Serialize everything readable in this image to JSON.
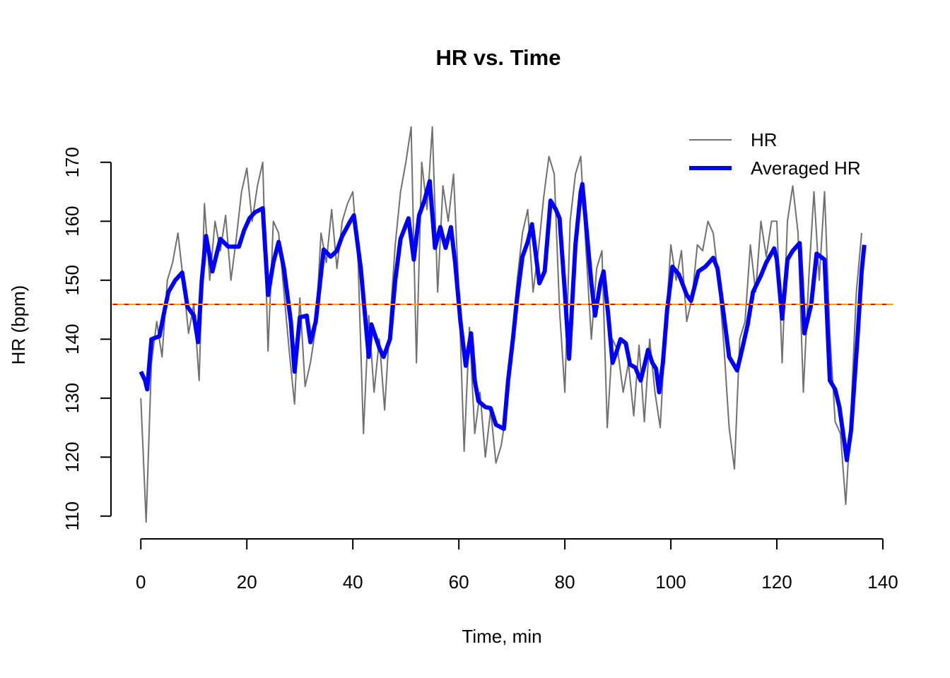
{
  "chart_data": {
    "type": "line",
    "title": "HR vs. Time",
    "x_label": "Time, min",
    "y_label": "HR (bpm)",
    "xlim": [
      -5.5,
      142
    ],
    "ylim": [
      106.5,
      178
    ],
    "xticks": [
      0,
      20,
      40,
      60,
      80,
      100,
      120,
      140
    ],
    "yticks": [
      110,
      120,
      130,
      140,
      150,
      160,
      170
    ],
    "legend": "topright",
    "hlines": [
      {
        "value": 145.9,
        "color": "#ff0000"
      },
      {
        "value": 145.9,
        "color": "#ffa500"
      }
    ],
    "series": [
      {
        "name": "HR",
        "color": "#707070",
        "width": 2,
        "x": [
          0,
          1,
          2,
          3,
          4,
          5,
          6,
          7,
          8,
          9,
          10,
          11,
          12,
          13,
          14,
          15,
          16,
          17,
          18,
          19,
          20,
          21,
          22,
          23,
          24,
          25,
          26,
          27,
          28,
          29,
          30,
          31,
          32,
          33,
          34,
          35,
          36,
          37,
          38,
          39,
          40,
          41,
          42,
          43,
          44,
          45,
          46,
          47,
          48,
          49,
          50,
          51,
          52,
          53,
          54,
          55,
          56,
          57,
          58,
          59,
          60,
          61,
          62,
          63,
          64,
          65,
          66,
          67,
          68,
          69,
          70,
          71,
          72,
          73,
          74,
          75,
          76,
          77,
          78,
          79,
          80,
          81,
          82,
          83,
          84,
          85,
          86,
          87,
          88,
          89,
          90,
          91,
          92,
          93,
          94,
          95,
          96,
          97,
          98,
          99,
          100,
          101,
          102,
          103,
          104,
          105,
          106,
          107,
          108,
          109,
          110,
          111,
          112,
          113,
          114,
          115,
          116,
          117,
          118,
          119,
          120,
          121,
          122,
          123,
          124,
          125,
          126,
          127,
          128,
          129,
          130,
          131,
          132,
          133,
          134,
          135,
          136
        ],
        "values": [
          130,
          109,
          136,
          143,
          137,
          150,
          153,
          158,
          150,
          141,
          146,
          133,
          163,
          150,
          160,
          155,
          161,
          150,
          157,
          165,
          169,
          160,
          166,
          170,
          138,
          160,
          158,
          148,
          138,
          129,
          147,
          132,
          136,
          142,
          158,
          153,
          162,
          152,
          160,
          163,
          165,
          153,
          124,
          144,
          131,
          140,
          128,
          143,
          156,
          165,
          170,
          176,
          136,
          170,
          162,
          176,
          148,
          166,
          160,
          168,
          148,
          121,
          142,
          124,
          131,
          120,
          128,
          119,
          122,
          128,
          140,
          150,
          158,
          162,
          148,
          155,
          164,
          171,
          168,
          145,
          131,
          160,
          168,
          171,
          155,
          140,
          152,
          155,
          125,
          140,
          138,
          131,
          136,
          127,
          139,
          126,
          140,
          131,
          125,
          142,
          156,
          150,
          155,
          143,
          147,
          156,
          155,
          160,
          158,
          150,
          139,
          125,
          118,
          140,
          143,
          156,
          148,
          160,
          154,
          160,
          160,
          136,
          160,
          166,
          158,
          131,
          150,
          165,
          150,
          165,
          141,
          126,
          124,
          112,
          128,
          148,
          158
        ]
      },
      {
        "name": "Averaged HR",
        "color": "#0000ff",
        "width": 6,
        "x": [
          0,
          0.8,
          1.2,
          2,
          3.5,
          4.5,
          5.2,
          6.5,
          7.8,
          8.8,
          10,
          10.8,
          11.5,
          12.3,
          13.5,
          15,
          16.5,
          18.5,
          19.5,
          20.5,
          21.5,
          23,
          24,
          25,
          26,
          27,
          28.3,
          29,
          30,
          31.3,
          32,
          33,
          34.5,
          35.8,
          37,
          38,
          39.5,
          40.2,
          41.5,
          43,
          43.5,
          45,
          45.8,
          47,
          48,
          49,
          50.5,
          51.5,
          52.5,
          53.5,
          54.5,
          55.5,
          56.5,
          57.5,
          58.5,
          59.3,
          60.3,
          61.3,
          62.3,
          63,
          63.7,
          65,
          66,
          67,
          68.5,
          69.3,
          70.2,
          71,
          72,
          73,
          73.8,
          75.2,
          76.2,
          77.3,
          78.3,
          79,
          80,
          80.8,
          82,
          83,
          83.3,
          84,
          85,
          85.7,
          86.7,
          87.3,
          88.2,
          89,
          89.8,
          90.5,
          91.5,
          92.3,
          93.3,
          94.3,
          95,
          95.7,
          96.5,
          97.2,
          97.8,
          98.5,
          99.3,
          100.3,
          101.5,
          103,
          103.8,
          105.2,
          106.5,
          108,
          108.8,
          110,
          111,
          112.5,
          113.5,
          114.5,
          115.5,
          117,
          118,
          119.5,
          120,
          121,
          122,
          123,
          124.3,
          125.2,
          126.5,
          127.5,
          129,
          130,
          131,
          131.8,
          133.2,
          134,
          135.2,
          136,
          136.5
        ],
        "values": [
          134.5,
          133,
          131.5,
          140,
          140.5,
          145,
          148,
          150,
          151.3,
          145.5,
          144,
          139.5,
          150,
          157.5,
          151.5,
          157,
          155.7,
          155.7,
          158.5,
          160.5,
          161.5,
          162.2,
          147.5,
          153,
          156.5,
          152,
          143,
          134.5,
          143.7,
          144,
          139.5,
          143,
          155.2,
          154,
          155,
          157.5,
          160,
          161,
          152,
          137,
          142.5,
          138.5,
          137,
          140,
          150,
          157,
          160.5,
          153.5,
          161,
          163.5,
          166.8,
          155.5,
          159,
          155.5,
          159,
          153,
          143,
          135.5,
          141,
          133,
          129.5,
          128.5,
          128.3,
          125.5,
          124.8,
          133,
          140,
          147,
          154,
          156.5,
          159.5,
          149.5,
          151.5,
          163.5,
          162,
          160.5,
          148,
          136.7,
          156,
          165,
          166.3,
          159.5,
          149.5,
          144,
          149.5,
          151.5,
          144,
          136,
          138,
          140,
          139.3,
          135.7,
          135.2,
          133,
          135.5,
          138.2,
          136,
          135,
          131,
          136,
          145,
          152.3,
          151,
          147.5,
          146.5,
          151.5,
          152.3,
          153.8,
          152,
          144,
          137,
          134.7,
          138.5,
          142.5,
          148,
          150.8,
          153,
          155.4,
          153.5,
          143.5,
          153.5,
          155,
          156.3,
          141,
          146,
          154.5,
          153.5,
          133,
          131.5,
          128.5,
          119.5,
          124.5,
          140,
          151.5,
          156
        ]
      }
    ]
  }
}
